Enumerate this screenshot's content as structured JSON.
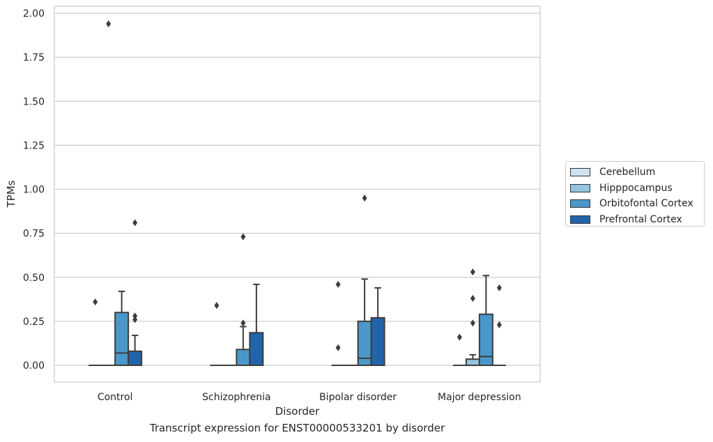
{
  "caption": "Transcript expression for ENST00000533201 by disorder",
  "chart_data": {
    "type": "box",
    "title": "",
    "xlabel": "Disorder",
    "ylabel": "TPMs",
    "ylim": [
      -0.095,
      2.05
    ],
    "yticks": [
      0.0,
      0.25,
      0.5,
      0.75,
      1.0,
      1.25,
      1.5,
      1.75,
      2.0
    ],
    "ytick_labels": [
      "0.00",
      "0.25",
      "0.50",
      "0.75",
      "1.00",
      "1.25",
      "1.50",
      "1.75",
      "2.00"
    ],
    "grid": "y",
    "legend_position": "outside right",
    "categories": [
      "Control",
      "Schizophrenia",
      "Bipolar disorder",
      "Major depression"
    ],
    "series": [
      {
        "name": "Cerebellum",
        "color": "#d0e1f2",
        "boxes": [
          {
            "q1": 0,
            "median": 0,
            "q3": 0,
            "whisker_low": 0,
            "whisker_high": 0,
            "outliers": [
              0.36
            ]
          },
          {
            "q1": 0,
            "median": 0,
            "q3": 0,
            "whisker_low": 0,
            "whisker_high": 0,
            "outliers": [
              0.34
            ]
          },
          {
            "q1": 0,
            "median": 0,
            "q3": 0,
            "whisker_low": 0,
            "whisker_high": 0,
            "outliers": [
              0.46,
              0.1
            ]
          },
          {
            "q1": 0,
            "median": 0,
            "q3": 0,
            "whisker_low": 0,
            "whisker_high": 0,
            "outliers": [
              0.16
            ]
          }
        ]
      },
      {
        "name": "Hipppocampus",
        "color": "#94c4df",
        "boxes": [
          {
            "q1": 0,
            "median": 0,
            "q3": 0,
            "whisker_low": 0,
            "whisker_high": 0,
            "outliers": [
              1.94
            ]
          },
          {
            "q1": 0,
            "median": 0,
            "q3": 0,
            "whisker_low": 0,
            "whisker_high": 0,
            "outliers": []
          },
          {
            "q1": 0,
            "median": 0,
            "q3": 0,
            "whisker_low": 0,
            "whisker_high": 0,
            "outliers": []
          },
          {
            "q1": 0,
            "median": 0,
            "q3": 0.035,
            "whisker_low": 0,
            "whisker_high": 0.06,
            "outliers": [
              0.53,
              0.38,
              0.24
            ]
          }
        ]
      },
      {
        "name": "Orbitofontal Cortex",
        "color": "#4a98c9",
        "boxes": [
          {
            "q1": 0,
            "median": 0.07,
            "q3": 0.3,
            "whisker_low": 0,
            "whisker_high": 0.42,
            "outliers": []
          },
          {
            "q1": 0,
            "median": 0,
            "q3": 0.09,
            "whisker_low": 0,
            "whisker_high": 0.22,
            "outliers": [
              0.73,
              0.24
            ]
          },
          {
            "q1": 0,
            "median": 0.04,
            "q3": 0.25,
            "whisker_low": 0,
            "whisker_high": 0.49,
            "outliers": [
              0.95
            ]
          },
          {
            "q1": 0,
            "median": 0.05,
            "q3": 0.29,
            "whisker_low": 0,
            "whisker_high": 0.51,
            "outliers": []
          }
        ]
      },
      {
        "name": "Prefrontal Cortex",
        "color": "#2164ab",
        "boxes": [
          {
            "q1": 0,
            "median": 0,
            "q3": 0.08,
            "whisker_low": 0,
            "whisker_high": 0.17,
            "outliers": [
              0.81,
              0.28,
              0.26
            ]
          },
          {
            "q1": 0,
            "median": 0,
            "q3": 0.185,
            "whisker_low": 0,
            "whisker_high": 0.46,
            "outliers": []
          },
          {
            "q1": 0,
            "median": 0,
            "q3": 0.27,
            "whisker_low": 0,
            "whisker_high": 0.44,
            "outliers": []
          },
          {
            "q1": 0,
            "median": 0,
            "q3": 0,
            "whisker_low": 0,
            "whisker_high": 0,
            "outliers": [
              0.44,
              0.23
            ]
          }
        ]
      }
    ]
  }
}
